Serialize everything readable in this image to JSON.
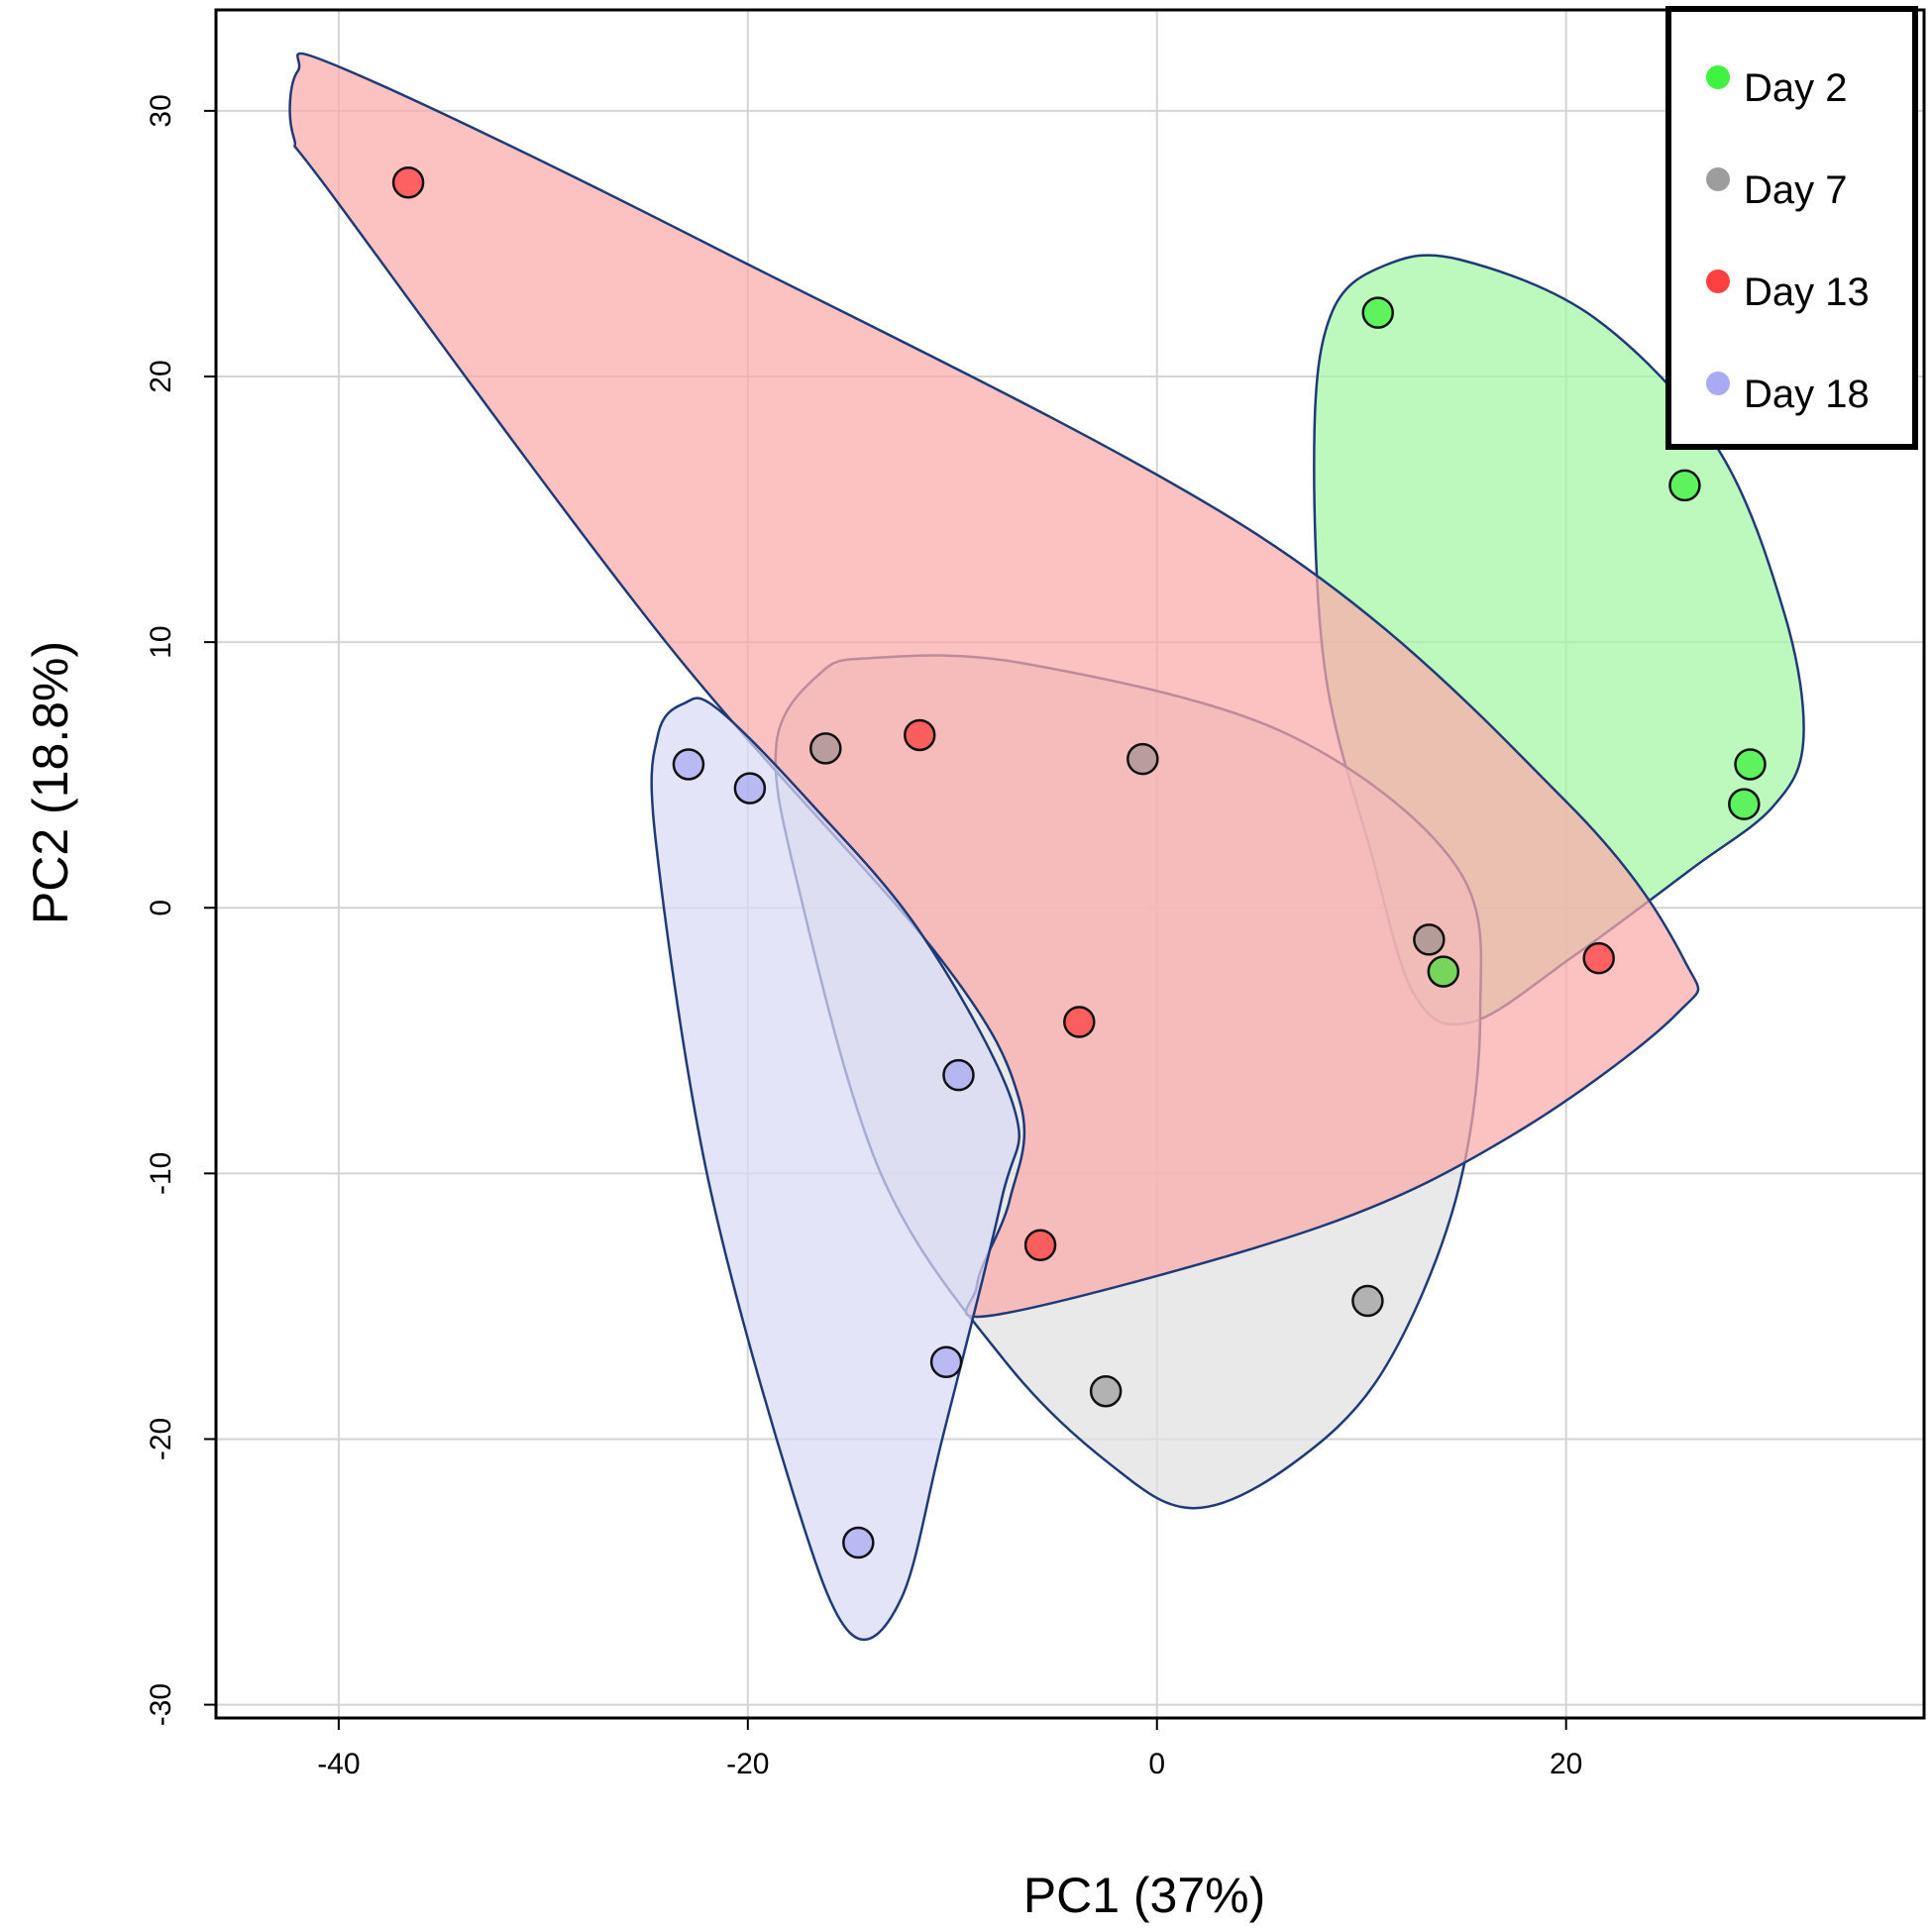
{
  "chart_data": {
    "type": "scatter",
    "title": "",
    "xlabel": "PC1 (37%)",
    "ylabel": "PC2 (18.8%)",
    "xlim": [
      -46,
      37.5
    ],
    "ylim": [
      -30.5,
      33.8
    ],
    "xticks": [
      -40,
      -20,
      0,
      20
    ],
    "yticks": [
      -30,
      -20,
      -10,
      0,
      10,
      20,
      30
    ],
    "grid": true,
    "legend_position": "top-right",
    "series": [
      {
        "name": "Day 2",
        "color": "#00ee00",
        "fill": "#a4f7a4",
        "points": [
          [
            10.8,
            22.4
          ],
          [
            25.8,
            15.9
          ],
          [
            29.0,
            5.4
          ],
          [
            28.7,
            3.9
          ],
          [
            14.0,
            -2.4
          ]
        ],
        "hull": [
          [
            11.2,
            24.2
          ],
          [
            8.6,
            22.5
          ],
          [
            7.7,
            18.0
          ],
          [
            8.2,
            9.0
          ],
          [
            10.5,
            2.0
          ],
          [
            12.6,
            -3.3
          ],
          [
            15.4,
            -4.3
          ],
          [
            20.4,
            -1.8
          ],
          [
            26.2,
            1.5
          ],
          [
            30.1,
            3.8
          ],
          [
            31.6,
            6.3
          ],
          [
            30.7,
            11.0
          ],
          [
            27.4,
            17.3
          ],
          [
            21.4,
            22.2
          ],
          [
            14.8,
            24.4
          ]
        ]
      },
      {
        "name": "Day 7",
        "color": "#7c7c7c",
        "fill": "#e0e0e0",
        "points": [
          [
            -16.2,
            6.0
          ],
          [
            -0.7,
            5.6
          ],
          [
            13.3,
            -1.2
          ],
          [
            10.3,
            -14.8
          ],
          [
            -2.5,
            -18.2
          ]
        ],
        "hull": [
          [
            -16.5,
            8.8
          ],
          [
            -18.6,
            6.2
          ],
          [
            -17.6,
            1.0
          ],
          [
            -13.5,
            -10.0
          ],
          [
            -7.5,
            -17.0
          ],
          [
            -2.2,
            -21.0
          ],
          [
            1.8,
            -22.6
          ],
          [
            6.5,
            -21.0
          ],
          [
            11.0,
            -17.5
          ],
          [
            14.6,
            -11.0
          ],
          [
            15.8,
            -4.0
          ],
          [
            14.6,
            1.6
          ],
          [
            6.2,
            6.6
          ],
          [
            -6.5,
            9.2
          ],
          [
            -14.0,
            9.4
          ]
        ]
      },
      {
        "name": "Day 13",
        "color": "#ff0000",
        "fill": "#fbaaaa",
        "points": [
          [
            -36.6,
            27.3
          ],
          [
            -11.6,
            6.5
          ],
          [
            -3.8,
            -4.3
          ],
          [
            -5.7,
            -12.7
          ],
          [
            21.6,
            -1.9
          ]
        ],
        "hull": [
          [
            -42.0,
            31.5
          ],
          [
            -42.2,
            29.0
          ],
          [
            -40.0,
            26.5
          ],
          [
            -24.0,
            10.0
          ],
          [
            -10.7,
            -1.8
          ],
          [
            -6.7,
            -7.3
          ],
          [
            -7.2,
            -11.0
          ],
          [
            -8.8,
            -14.2
          ],
          [
            -7.7,
            -15.3
          ],
          [
            8.0,
            -12.0
          ],
          [
            17.5,
            -8.5
          ],
          [
            25.4,
            -4.0
          ],
          [
            25.8,
            -2.0
          ],
          [
            20.0,
            4.0
          ],
          [
            5.0,
            14.0
          ],
          [
            -22.0,
            25.0
          ],
          [
            -39.8,
            31.6
          ]
        ]
      },
      {
        "name": "Day 18",
        "color": "#8e8ef0",
        "fill": "#d9d9f7",
        "points": [
          [
            -22.9,
            5.4
          ],
          [
            -19.9,
            4.5
          ],
          [
            -9.7,
            -6.3
          ],
          [
            -10.3,
            -17.1
          ],
          [
            -14.6,
            -23.9
          ]
        ],
        "hull": [
          [
            -23.1,
            7.7
          ],
          [
            -24.4,
            6.5
          ],
          [
            -24.5,
            2.5
          ],
          [
            -22.0,
            -10.0
          ],
          [
            -17.8,
            -22.0
          ],
          [
            -15.0,
            -27.3
          ],
          [
            -12.5,
            -26.0
          ],
          [
            -10.5,
            -20.0
          ],
          [
            -7.6,
            -11.0
          ],
          [
            -7.0,
            -7.5
          ],
          [
            -11.5,
            -1.0
          ],
          [
            -17.0,
            4.0
          ],
          [
            -21.5,
            7.5
          ]
        ]
      }
    ]
  }
}
